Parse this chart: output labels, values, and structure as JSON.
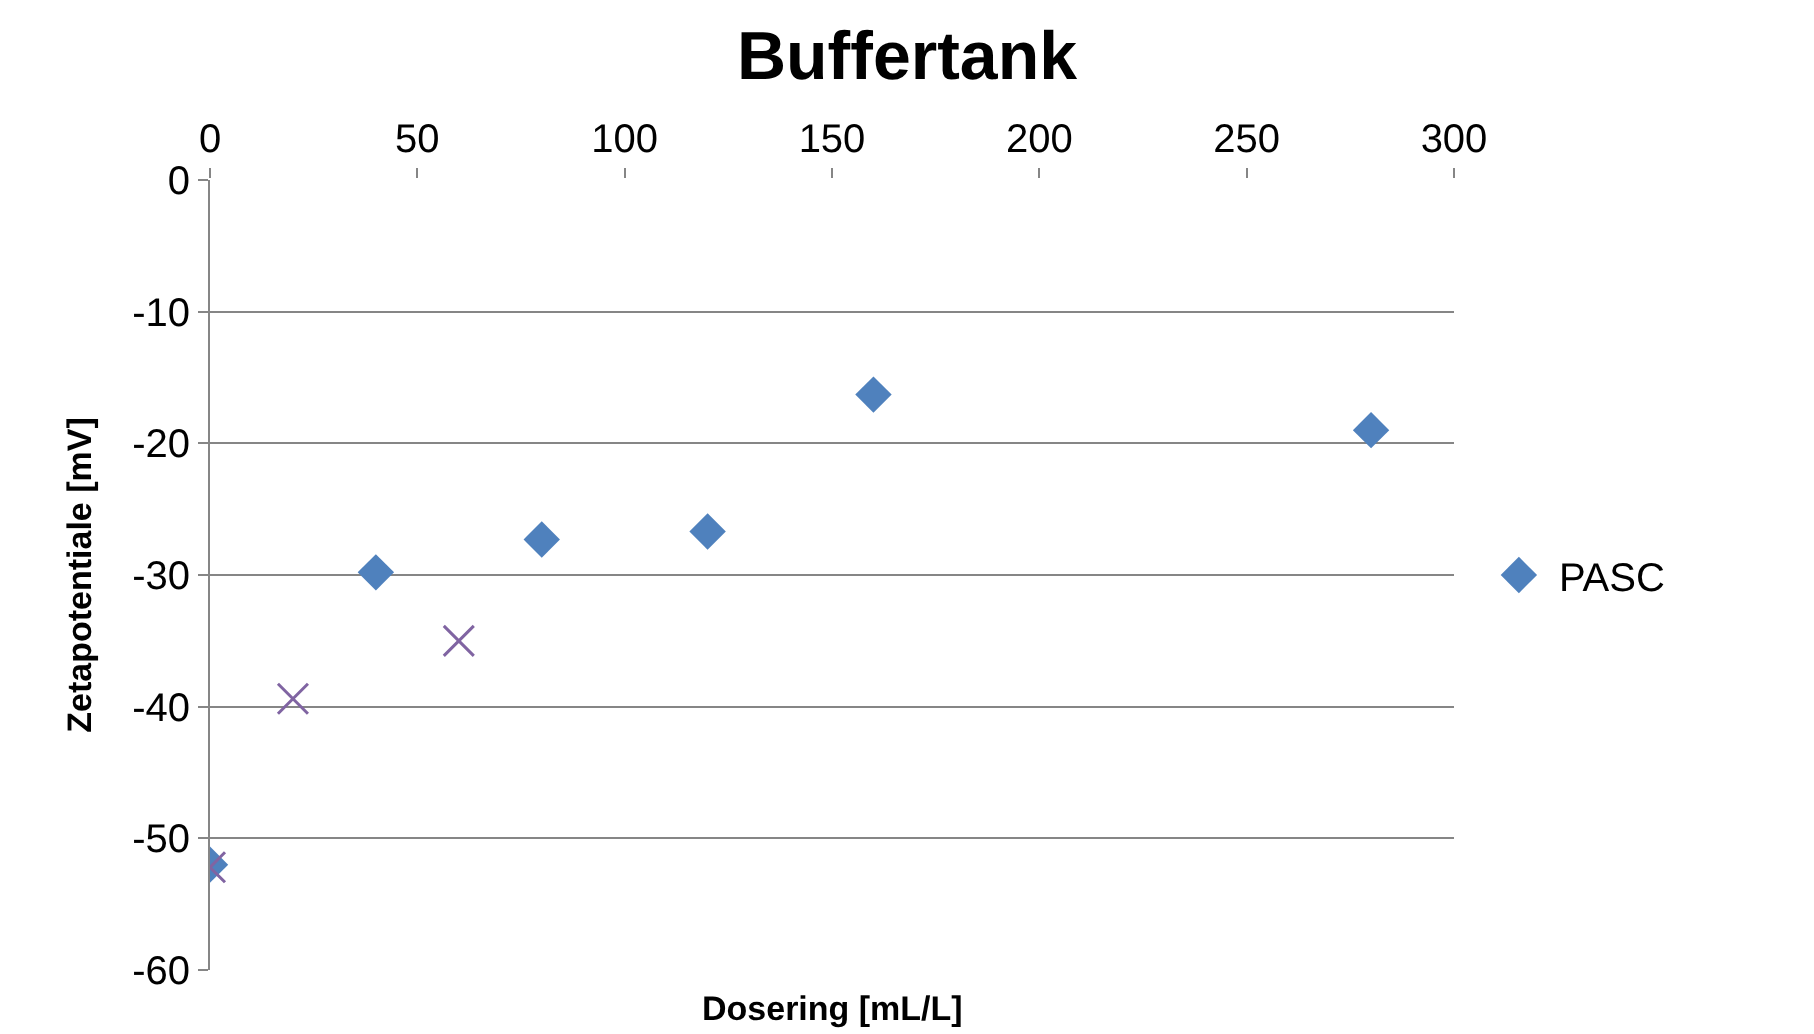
{
  "chart_data": {
    "type": "scatter",
    "title": "Buffertank",
    "xlabel": "Dosering [mL/L]",
    "ylabel": "Zetapotentiale [mV]",
    "xlim": [
      0,
      300
    ],
    "xticks": [
      0,
      50,
      100,
      150,
      200,
      250,
      300
    ],
    "ylim": [
      -60,
      0
    ],
    "yticks": [
      -60,
      -50,
      -40,
      -30,
      -20,
      -10,
      0
    ],
    "grid": "y",
    "legend": "right",
    "series": [
      {
        "name": "PASC",
        "color": "#4f81bd",
        "marker": "diamond",
        "x": [
          0,
          40,
          80,
          120,
          160,
          280
        ],
        "values": [
          -52,
          -29.8,
          -27.3,
          -26.7,
          -16.3,
          -19
        ]
      },
      {
        "color": "#8064a2",
        "marker": "cross",
        "x": [
          0,
          20,
          60
        ],
        "values": [
          -52.2,
          -39.4,
          -35
        ]
      }
    ]
  }
}
